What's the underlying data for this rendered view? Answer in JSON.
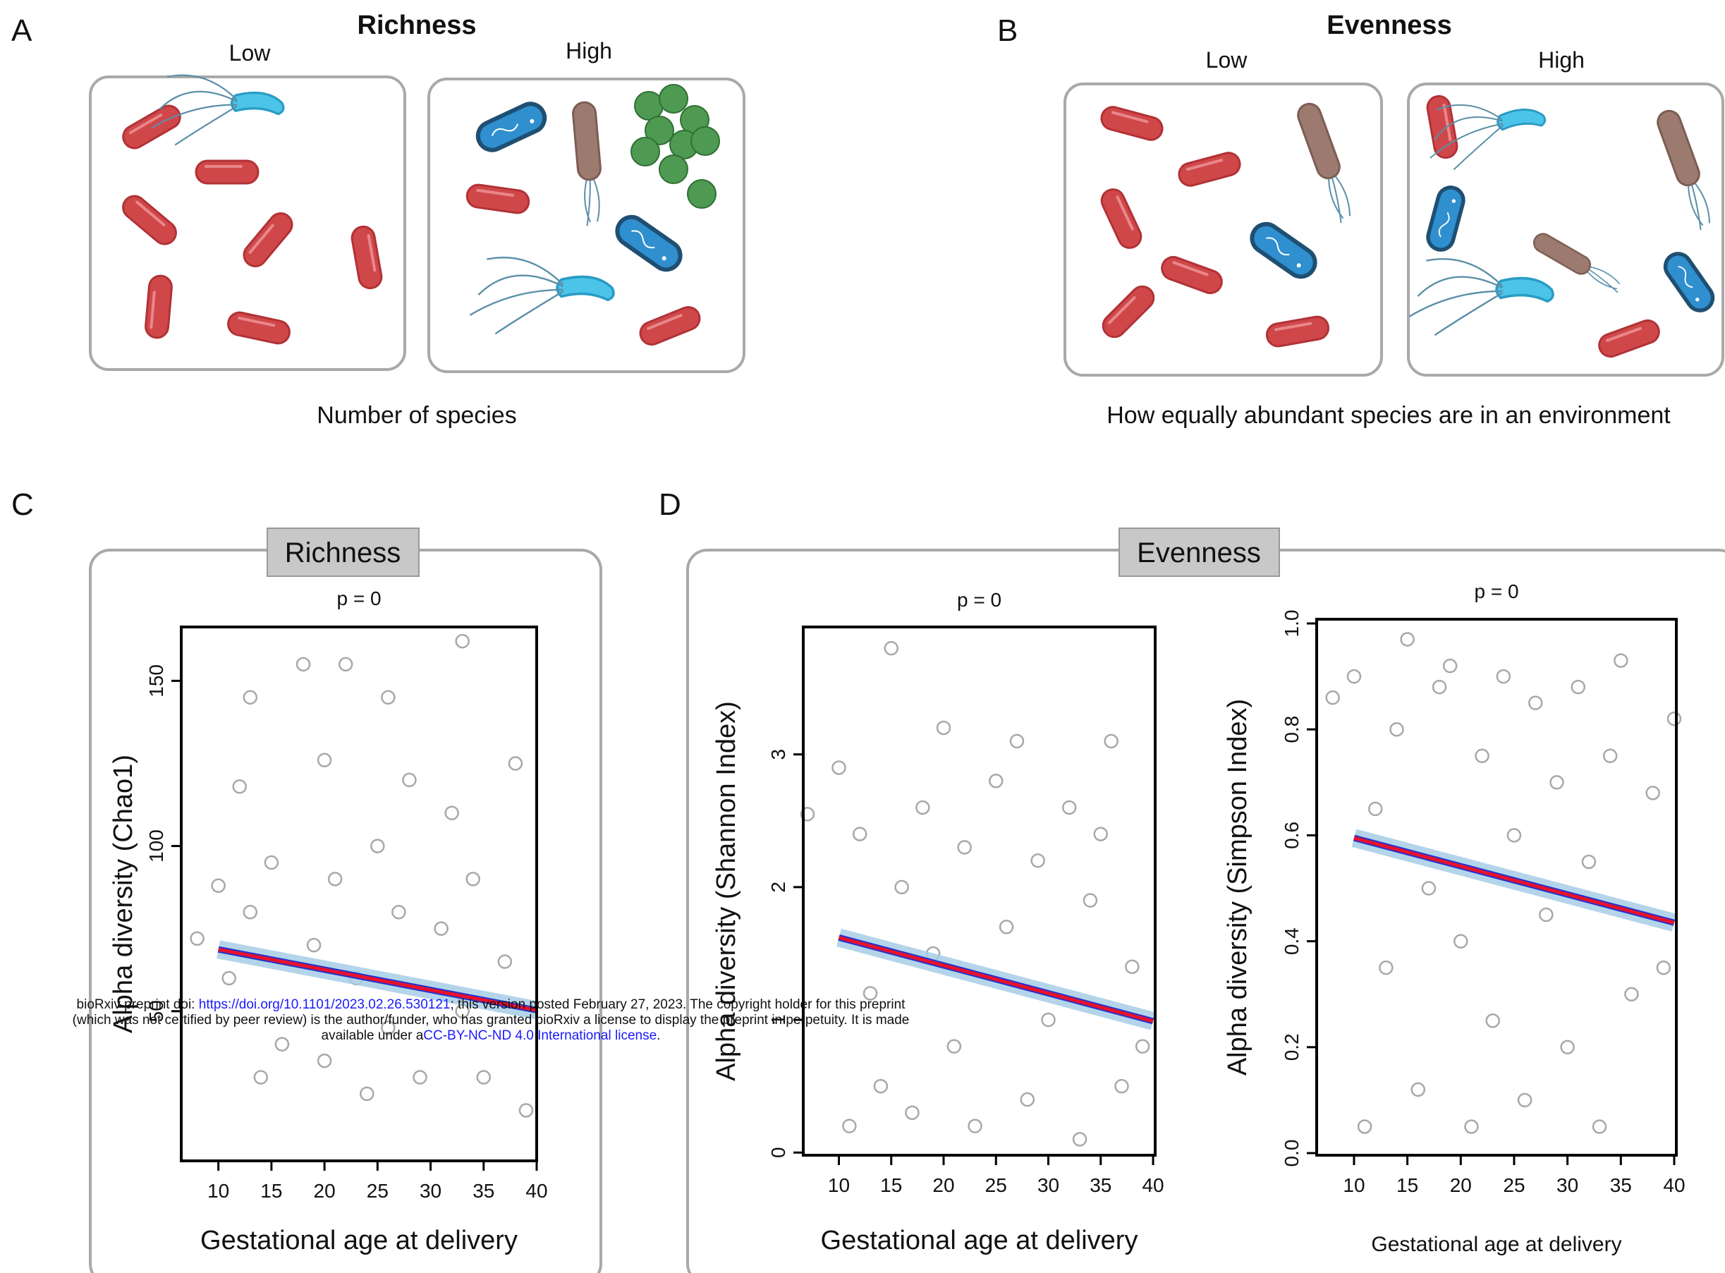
{
  "panels": {
    "a": {
      "label": "A",
      "title": "Richness",
      "low": "Low",
      "high": "High",
      "caption": "Number of species"
    },
    "b": {
      "label": "B",
      "title": "Evenness",
      "low": "Low",
      "high": "High",
      "caption": "How equally abundant species are in an environment"
    },
    "c": {
      "label": "C",
      "strip": "Richness"
    },
    "d": {
      "label": "D",
      "strip": "Evenness"
    }
  },
  "watermark": {
    "line1_pre": "bioRxiv preprint doi: ",
    "line1_link": "https://doi.org/10.1101/2023.02.26.530121",
    "line1_post": "; this version posted February 27, 2023. The copyright holder for this preprint",
    "line2": "(which was not certified by peer review) is the author/funder, who has granted bioRxiv a license to display the preprint in perpetuity. It is made",
    "line3_pre": "available under a",
    "line3_link": "CC-BY-NC-ND 4.0 International license",
    "line3_post": "."
  },
  "chart_data": [
    {
      "type": "scatter",
      "title": "p = 0",
      "xlabel": "Gestational age at delivery",
      "ylabel": "Alpha diversity (Chao1)",
      "xlim": [
        6.5,
        40
      ],
      "ylim": [
        4.7,
        166.3
      ],
      "xticks": [
        10,
        15,
        20,
        25,
        30,
        35,
        40
      ],
      "yticks": [
        50,
        100,
        150
      ],
      "series": [
        {
          "type": "scatter",
          "color": "#a8a8a8",
          "x": [
            8,
            10,
            11,
            12,
            13,
            13,
            14,
            15,
            16,
            18,
            19,
            20,
            20,
            21,
            22,
            23,
            24,
            25,
            26,
            26,
            27,
            28,
            29,
            31,
            32,
            33,
            33,
            34,
            35,
            37,
            38,
            39
          ],
          "values": [
            72,
            88,
            60,
            118,
            145,
            80,
            30,
            95,
            40,
            155,
            70,
            126,
            35,
            90,
            155,
            60,
            25,
            100,
            145,
            45,
            80,
            120,
            30,
            75,
            110,
            162,
            50,
            90,
            30,
            65,
            125,
            20
          ]
        },
        {
          "type": "line",
          "color": "#e8112d",
          "x": [
            10,
            40
          ],
          "values": [
            68.7,
            50.3
          ]
        }
      ]
    },
    {
      "type": "scatter",
      "title": "p = 0",
      "xlabel": "Gestational age at delivery",
      "ylabel": "Alpha diversity (Shannon Index)",
      "xlim": [
        6.6,
        40.2
      ],
      "ylim": [
        -0.02,
        3.96
      ],
      "xticks": [
        10,
        15,
        20,
        25,
        30,
        35,
        40
      ],
      "yticks": [
        0,
        1,
        2,
        3
      ],
      "series": [
        {
          "type": "scatter",
          "color": "#a8a8a8",
          "x": [
            7,
            10,
            11,
            12,
            13,
            14,
            15,
            16,
            17,
            18,
            19,
            20,
            21,
            22,
            23,
            25,
            26,
            27,
            28,
            29,
            30,
            32,
            33,
            34,
            35,
            36,
            37,
            38,
            39
          ],
          "values": [
            2.55,
            2.9,
            0.2,
            2.4,
            1.2,
            0.5,
            3.8,
            2.0,
            0.3,
            2.6,
            1.5,
            3.2,
            0.8,
            2.3,
            0.2,
            2.8,
            1.7,
            3.1,
            0.4,
            2.2,
            1.0,
            2.6,
            0.1,
            1.9,
            2.4,
            3.1,
            0.5,
            1.4,
            0.8
          ]
        },
        {
          "type": "line",
          "color": "#e8112d",
          "x": [
            10,
            40
          ],
          "values": [
            1.62,
            0.99
          ]
        }
      ]
    },
    {
      "type": "scatter",
      "title": "p = 0",
      "xlabel": "Gestational age at delivery",
      "ylabel": "Alpha diversity (Simpson Index)",
      "xlim": [
        6.5,
        40.2
      ],
      "ylim": [
        -0.004,
        1.008
      ],
      "xticks": [
        10,
        15,
        20,
        25,
        30,
        35,
        40
      ],
      "yticks": [
        {
          "value": 0,
          "label": "0.0"
        },
        0.2,
        0.4,
        0.6,
        0.8,
        {
          "value": 1,
          "label": "1.0"
        }
      ],
      "series": [
        {
          "type": "scatter",
          "color": "#a8a8a8",
          "x": [
            8,
            10,
            11,
            12,
            13,
            14,
            15,
            16,
            17,
            18,
            19,
            20,
            21,
            22,
            23,
            24,
            25,
            26,
            27,
            28,
            29,
            30,
            31,
            32,
            33,
            34,
            35,
            36,
            38,
            39,
            40
          ],
          "values": [
            0.86,
            0.9,
            0.05,
            0.65,
            0.35,
            0.8,
            0.97,
            0.12,
            0.5,
            0.88,
            0.92,
            0.4,
            0.05,
            0.75,
            0.25,
            0.9,
            0.6,
            0.1,
            0.85,
            0.45,
            0.7,
            0.2,
            0.88,
            0.55,
            0.05,
            0.75,
            0.93,
            0.3,
            0.68,
            0.35,
            0.82
          ]
        },
        {
          "type": "line",
          "color": "#e8112d",
          "x": [
            10,
            40
          ],
          "values": [
            0.595,
            0.435
          ]
        }
      ]
    }
  ]
}
